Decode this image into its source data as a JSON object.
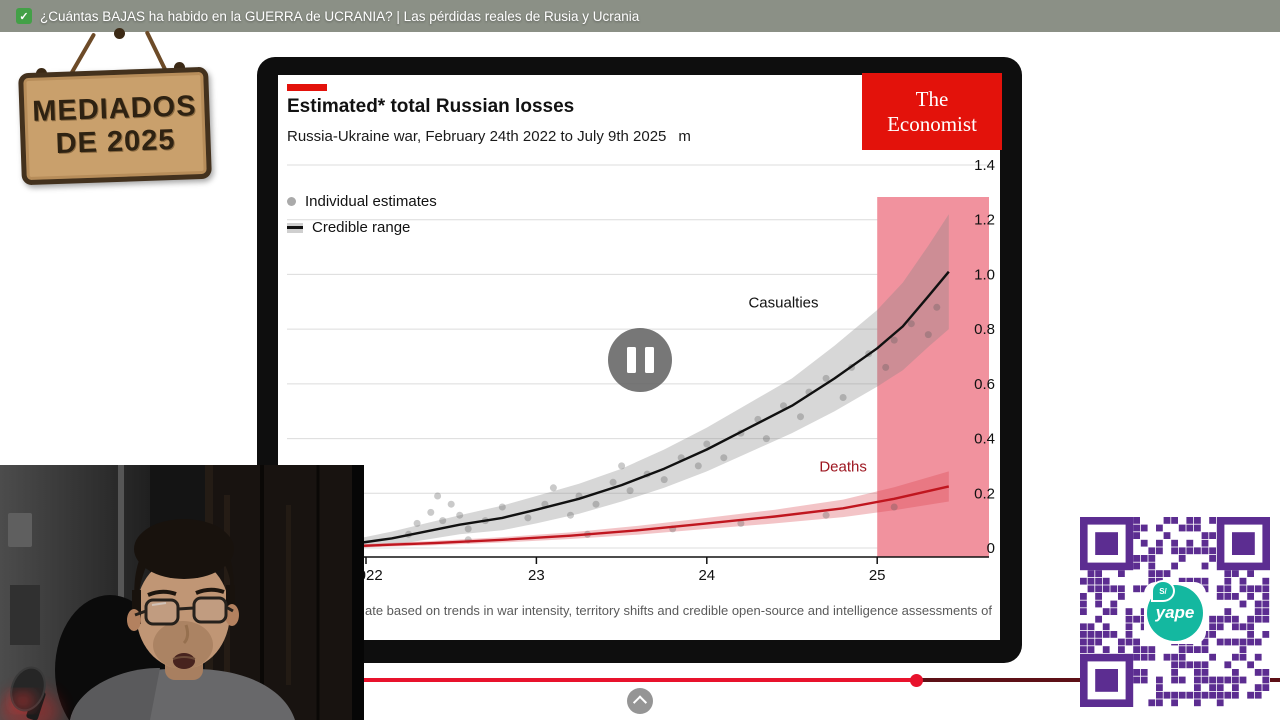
{
  "header": {
    "badge": "✓",
    "title": "¿Cuántas BAJAS ha habido en la GUERRA de UCRANIA? | Las pérdidas reales de Rusia y Ucrania"
  },
  "sign": {
    "line1": "MEDIADOS",
    "line2": "DE 2025"
  },
  "player": {
    "progress_percent": 71.6
  },
  "chart": {
    "title": "Estimated* total Russian losses",
    "subtitle": "Russia-Ukraine war, February 24th 2022 to July 9th 2025",
    "unit": "m",
    "brand_color": "#e3120b",
    "brand_line1": "The",
    "brand_line2": "Economist",
    "legend_individual": "Individual estimates",
    "legend_credible": "Credible range",
    "footnote": "ate based on trends in war intensity, territory shifts and credible open-source and intelligence assessments of"
  },
  "qr": {
    "brand": "yape",
    "currency": "S/",
    "module_color": "#5c2d91",
    "logo_color": "#14b8a0"
  },
  "chart_data": {
    "type": "line",
    "title": "Estimated* total Russian losses",
    "subtitle": "Russia-Ukraine war, February 24th 2022 to July 9th 2025",
    "unit": "m",
    "x_axis": {
      "origin": 2022,
      "ticks": [
        2022,
        2023,
        2024,
        2025
      ],
      "tick_labels": [
        "2022",
        "23",
        "24",
        "25"
      ]
    },
    "y_axis": {
      "max": 1.4,
      "values": [
        0,
        0.2,
        0.4,
        0.6,
        0.8,
        1.0,
        1.2,
        1.4
      ],
      "labels": [
        "0",
        "0.2",
        "0.4",
        "0.6",
        "0.8",
        "1.0",
        "1.2",
        "1.4"
      ]
    },
    "legend": [
      "Individual estimates",
      "Credible range"
    ],
    "forecast_region": {
      "from": 2025.0,
      "to": 2025.66,
      "color": "#f1929e"
    },
    "series": [
      {
        "name": "Casualties",
        "color": "#111111",
        "label_color": "#111111",
        "band_color": "rgba(130,130,130,0.32)",
        "label_pos": [
          2024.45,
          0.88
        ],
        "points": [
          [
            2021.98,
            0.02
          ],
          [
            2022.15,
            0.035
          ],
          [
            2022.35,
            0.06
          ],
          [
            2022.55,
            0.085
          ],
          [
            2022.8,
            0.11
          ],
          [
            2023.0,
            0.14
          ],
          [
            2023.25,
            0.18
          ],
          [
            2023.5,
            0.23
          ],
          [
            2023.75,
            0.29
          ],
          [
            2024.0,
            0.36
          ],
          [
            2024.25,
            0.44
          ],
          [
            2024.5,
            0.52
          ],
          [
            2024.75,
            0.62
          ],
          [
            2025.0,
            0.73
          ],
          [
            2025.15,
            0.81
          ],
          [
            2025.3,
            0.92
          ],
          [
            2025.42,
            1.01
          ]
        ],
        "band_halfwidth": [
          0.018,
          0.025,
          0.03,
          0.035,
          0.045,
          0.05,
          0.055,
          0.06,
          0.07,
          0.08,
          0.09,
          0.1,
          0.12,
          0.14,
          0.16,
          0.185,
          0.21
        ]
      },
      {
        "name": "Deaths",
        "color": "#c0161f",
        "label_color": "#9d1620",
        "band_color": "rgba(214,60,70,0.30)",
        "label_pos": [
          2024.8,
          0.28
        ],
        "points": [
          [
            2021.98,
            0.008
          ],
          [
            2022.4,
            0.018
          ],
          [
            2022.8,
            0.03
          ],
          [
            2023.2,
            0.045
          ],
          [
            2023.6,
            0.065
          ],
          [
            2024.0,
            0.09
          ],
          [
            2024.4,
            0.115
          ],
          [
            2024.8,
            0.145
          ],
          [
            2025.1,
            0.18
          ],
          [
            2025.42,
            0.225
          ]
        ],
        "band_halfwidth": [
          0.006,
          0.008,
          0.01,
          0.012,
          0.016,
          0.02,
          0.025,
          0.032,
          0.042,
          0.055
        ]
      }
    ],
    "scatter": {
      "color": "rgba(90,90,90,0.32)",
      "points": [
        [
          2022.25,
          0.05
        ],
        [
          2022.3,
          0.09
        ],
        [
          2022.38,
          0.13
        ],
        [
          2022.42,
          0.19
        ],
        [
          2022.45,
          0.1
        ],
        [
          2022.5,
          0.16
        ],
        [
          2022.55,
          0.12
        ],
        [
          2022.6,
          0.07
        ],
        [
          2022.6,
          0.03
        ],
        [
          2022.7,
          0.1
        ],
        [
          2022.8,
          0.15
        ],
        [
          2022.95,
          0.11
        ],
        [
          2023.05,
          0.16
        ],
        [
          2023.1,
          0.22
        ],
        [
          2023.2,
          0.12
        ],
        [
          2023.25,
          0.19
        ],
        [
          2023.3,
          0.05
        ],
        [
          2023.35,
          0.16
        ],
        [
          2023.45,
          0.24
        ],
        [
          2023.5,
          0.3
        ],
        [
          2023.55,
          0.21
        ],
        [
          2023.65,
          0.27
        ],
        [
          2023.75,
          0.25
        ],
        [
          2023.8,
          0.07
        ],
        [
          2023.85,
          0.33
        ],
        [
          2023.95,
          0.3
        ],
        [
          2024.0,
          0.38
        ],
        [
          2024.1,
          0.33
        ],
        [
          2024.2,
          0.42
        ],
        [
          2024.2,
          0.09
        ],
        [
          2024.3,
          0.47
        ],
        [
          2024.35,
          0.4
        ],
        [
          2024.45,
          0.52
        ],
        [
          2024.55,
          0.48
        ],
        [
          2024.6,
          0.57
        ],
        [
          2024.7,
          0.62
        ],
        [
          2024.7,
          0.12
        ],
        [
          2024.8,
          0.55
        ],
        [
          2024.85,
          0.66
        ],
        [
          2024.95,
          0.71
        ],
        [
          2025.05,
          0.66
        ],
        [
          2025.1,
          0.76
        ],
        [
          2025.1,
          0.15
        ],
        [
          2025.2,
          0.82
        ],
        [
          2025.3,
          0.78
        ],
        [
          2025.35,
          0.88
        ]
      ]
    }
  }
}
